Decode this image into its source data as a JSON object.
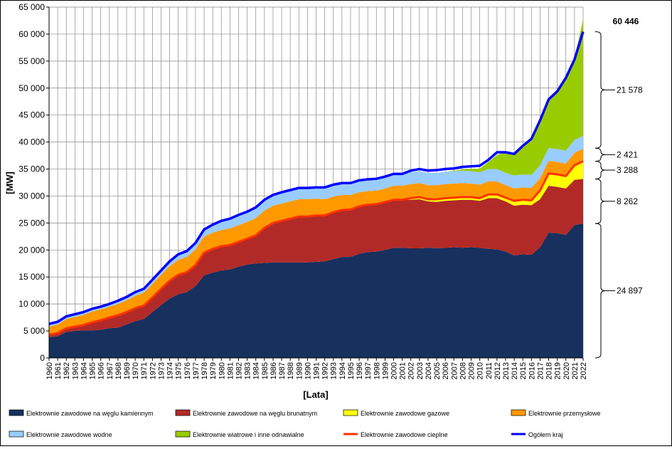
{
  "chart_data": {
    "type": "area",
    "title": "",
    "xlabel": "[Lata]",
    "ylabel": "[MW]",
    "ylim": [
      0,
      65000
    ],
    "y_ticks": [
      "0",
      "5 000",
      "10 000",
      "15 000",
      "20 000",
      "25 000",
      "30 000",
      "35 000",
      "40 000",
      "45 000",
      "50 000",
      "55 000",
      "60 000",
      "65 000"
    ],
    "y_tick_values": [
      0,
      5000,
      10000,
      15000,
      20000,
      25000,
      30000,
      35000,
      40000,
      45000,
      50000,
      55000,
      60000,
      65000
    ],
    "grid": true,
    "stacked": true,
    "legend_position": "bottom",
    "colors": {
      "kamienny": "#17305E",
      "brunatny": "#B22A27",
      "gazowe": "#FFFF00",
      "przemyslowe": "#FF9900",
      "wodne": "#99CCFF",
      "wiatrowe": "#99CC00",
      "cieplne": "#FF3300",
      "ogolem": "#0000FF",
      "plot_bg": "#FFFFFF",
      "grid": "#888888"
    },
    "x": [
      "1960",
      "1961",
      "1962",
      "1963",
      "1964",
      "1965",
      "1966",
      "1967",
      "1968",
      "1969",
      "1970",
      "1971",
      "1972",
      "1973",
      "1974",
      "1975",
      "1976",
      "1977",
      "1978",
      "1979",
      "1980",
      "1981",
      "1982",
      "1983",
      "1984",
      "1985",
      "1986",
      "1987",
      "1988",
      "1989",
      "1990",
      "1991",
      "1992",
      "1993",
      "1994",
      "1995",
      "1996",
      "1997",
      "1998",
      "1999",
      "2000",
      "2001",
      "2002",
      "2003",
      "2004",
      "2005",
      "2006",
      "2007",
      "2008",
      "2009",
      "2010",
      "2011",
      "2012",
      "2013",
      "2014",
      "2015",
      "2016",
      "2017",
      "2018",
      "2019",
      "2020",
      "2021",
      "2022"
    ],
    "series": [
      {
        "name": "Elektrownie zawodowe na węglu kamiennym",
        "kind": "area",
        "color_key": "kamienny",
        "values": [
          3800,
          4000,
          4800,
          5000,
          5100,
          5100,
          5200,
          5500,
          5600,
          6200,
          6800,
          7200,
          8500,
          9800,
          11000,
          11800,
          12200,
          13300,
          15300,
          15800,
          16200,
          16400,
          16900,
          17300,
          17500,
          17600,
          17700,
          17700,
          17700,
          17700,
          17700,
          17800,
          17900,
          18300,
          18700,
          18700,
          19300,
          19600,
          19700,
          20000,
          20400,
          20400,
          20300,
          20300,
          20400,
          20300,
          20400,
          20500,
          20400,
          20500,
          20400,
          20200,
          20100,
          19700,
          19000,
          19200,
          19100,
          20500,
          23200,
          23100,
          22800,
          24600,
          24897
        ]
      },
      {
        "name": "Elektrownie zawodowe na węglu brunatnym",
        "kind": "area",
        "color_key": "brunatny",
        "values": [
          500,
          600,
          700,
          800,
          1000,
          1500,
          1800,
          2000,
          2300,
          2300,
          2400,
          2500,
          2700,
          3000,
          3300,
          3600,
          3700,
          3900,
          4200,
          4400,
          4500,
          4500,
          4600,
          4800,
          5200,
          6500,
          7300,
          7700,
          8100,
          8500,
          8500,
          8600,
          8500,
          8700,
          8700,
          8800,
          8800,
          8800,
          8800,
          8900,
          8900,
          8900,
          9000,
          9100,
          8600,
          8600,
          8700,
          8700,
          8900,
          8800,
          8700,
          9400,
          9500,
          9300,
          9200,
          9200,
          9200,
          8900,
          8700,
          8600,
          8600,
          8400,
          8262
        ]
      },
      {
        "name": "Elektrownie zawodowe gazowe",
        "kind": "area",
        "color_key": "gazowe",
        "values": [
          0,
          0,
          0,
          0,
          0,
          0,
          0,
          0,
          0,
          0,
          0,
          0,
          0,
          0,
          0,
          0,
          0,
          0,
          0,
          0,
          0,
          0,
          0,
          0,
          0,
          0,
          0,
          0,
          0,
          0,
          0,
          0,
          0,
          0,
          0,
          0,
          0,
          0,
          0,
          0,
          0,
          0,
          300,
          400,
          400,
          500,
          500,
          500,
          500,
          500,
          500,
          700,
          700,
          700,
          900,
          900,
          900,
          1600,
          2300,
          2300,
          2300,
          2700,
          3288
        ]
      },
      {
        "name": "Elektrownie przemysłowe",
        "kind": "area",
        "color_key": "przemyslowe",
        "values": [
          1500,
          1600,
          1700,
          1800,
          1900,
          2000,
          2000,
          2000,
          2100,
          2200,
          2300,
          2400,
          2500,
          2600,
          2700,
          2800,
          2800,
          2900,
          3000,
          3000,
          3000,
          3100,
          3100,
          3100,
          3200,
          3200,
          3200,
          3200,
          3200,
          3200,
          3200,
          3100,
          3000,
          2900,
          2800,
          2700,
          2600,
          2500,
          2500,
          2500,
          2600,
          2600,
          2600,
          2600,
          2600,
          2600,
          2600,
          2600,
          2600,
          2500,
          2500,
          2400,
          2400,
          2300,
          2300,
          2300,
          2300,
          2300,
          2300,
          2300,
          2300,
          2300,
          2300
        ]
      },
      {
        "name": "Elektrownie zawodowe wodne",
        "kind": "area",
        "color_key": "wodne",
        "values": [
          500,
          500,
          500,
          500,
          500,
          500,
          500,
          500,
          600,
          600,
          700,
          700,
          800,
          800,
          900,
          1000,
          1100,
          1200,
          1300,
          1500,
          1700,
          1800,
          1900,
          1900,
          2000,
          2000,
          2000,
          2100,
          2100,
          2100,
          2100,
          2100,
          2200,
          2200,
          2200,
          2200,
          2200,
          2200,
          2200,
          2200,
          2200,
          2200,
          2200,
          2200,
          2300,
          2300,
          2300,
          2300,
          2300,
          2300,
          2300,
          2300,
          2300,
          2300,
          2400,
          2400,
          2400,
          2400,
          2400,
          2400,
          2400,
          2400,
          2421
        ]
      },
      {
        "name": "Elektrownie wiatrowe i inne odnawialne",
        "kind": "area",
        "color_key": "wiatrowe",
        "values": [
          0,
          0,
          0,
          0,
          0,
          0,
          0,
          0,
          0,
          0,
          0,
          0,
          0,
          0,
          0,
          0,
          0,
          0,
          0,
          0,
          0,
          0,
          0,
          0,
          0,
          0,
          0,
          0,
          0,
          0,
          0,
          0,
          0,
          0,
          0,
          0,
          0,
          0,
          0,
          0,
          0,
          0,
          0,
          0,
          0,
          0,
          0,
          100,
          200,
          400,
          700,
          1300,
          2600,
          3900,
          3900,
          5200,
          6600,
          8300,
          9000,
          10700,
          13800,
          15100,
          21578
        ]
      },
      {
        "name": "Elektrownie zawodowe cieplne",
        "kind": "line",
        "color_key": "cieplne",
        "values": [
          4300,
          4600,
          5500,
          5800,
          6100,
          6600,
          7000,
          7500,
          7900,
          8500,
          9200,
          9700,
          11200,
          12800,
          14300,
          15400,
          15900,
          17200,
          19500,
          20200,
          20700,
          20900,
          21500,
          22100,
          22700,
          24100,
          25000,
          25400,
          25800,
          26200,
          26200,
          26400,
          26400,
          27000,
          27400,
          27500,
          28100,
          28400,
          28500,
          28900,
          29300,
          29300,
          29600,
          29800,
          29400,
          29400,
          29600,
          29700,
          29800,
          29800,
          29600,
          30300,
          30300,
          29700,
          29100,
          29300,
          29200,
          31000,
          34200,
          34000,
          33700,
          35700,
          36447
        ]
      },
      {
        "name": "Ogółem kraj",
        "kind": "line",
        "color_key": "ogolem",
        "values": [
          6300,
          6700,
          7700,
          8100,
          8500,
          9100,
          9500,
          10000,
          10600,
          11300,
          12200,
          12800,
          14500,
          16200,
          17900,
          19200,
          19800,
          21300,
          23800,
          24700,
          25400,
          25800,
          26500,
          27100,
          27900,
          29300,
          30200,
          30700,
          31100,
          31500,
          31500,
          31600,
          31600,
          32100,
          32400,
          32400,
          32900,
          33100,
          33200,
          33600,
          34100,
          34100,
          34700,
          35000,
          34700,
          34800,
          35000,
          35100,
          35400,
          35500,
          35600,
          36700,
          38100,
          38100,
          37800,
          39300,
          40600,
          44000,
          47900,
          49400,
          51900,
          55300,
          60446
        ]
      }
    ],
    "annotations": {
      "total_label": "60 446",
      "brace_labels": [
        "21 578",
        "2 421",
        "3 288",
        "8 262",
        "24 897"
      ]
    }
  }
}
